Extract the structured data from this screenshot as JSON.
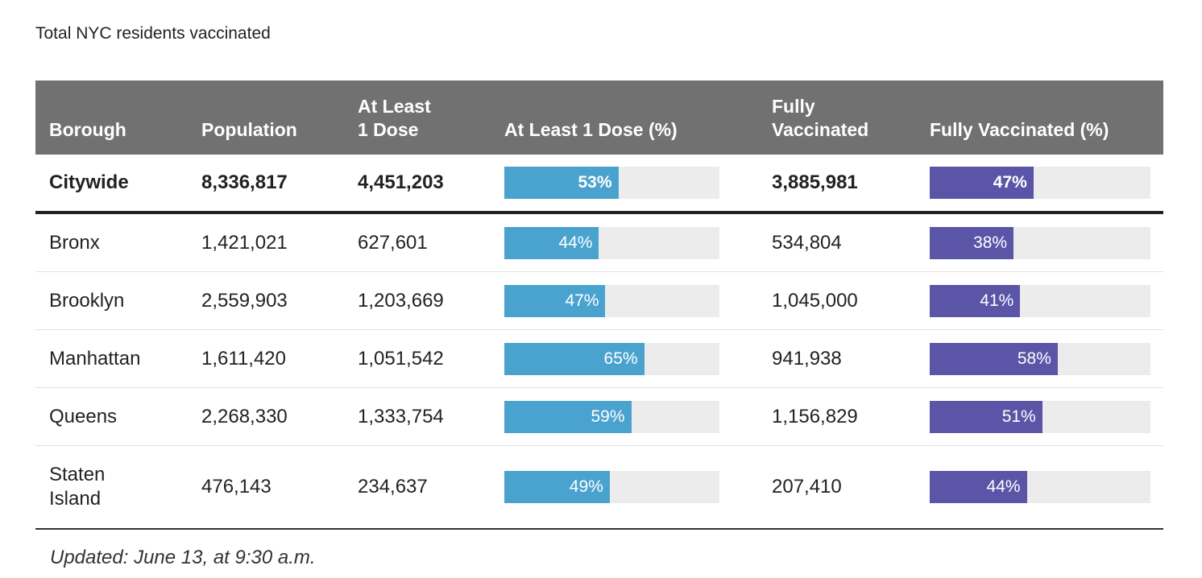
{
  "title": "Total NYC residents vaccinated",
  "colors": {
    "header_bg": "#717171",
    "dose1_bar": "#4aa3cf",
    "full_bar": "#5b55a8",
    "bar_track": "#ececec"
  },
  "columns": {
    "borough": "Borough",
    "population": "Population",
    "at_least_1_dose": [
      "At Least",
      "1 Dose"
    ],
    "at_least_1_dose_pct": "At Least 1 Dose (%)",
    "fully_vaccinated": [
      "Fully",
      "Vaccinated"
    ],
    "fully_vaccinated_pct": "Fully Vaccinated (%)"
  },
  "chart_data": {
    "type": "table",
    "columns": [
      "Borough",
      "Population",
      "At Least 1 Dose",
      "At Least 1 Dose (%)",
      "Fully Vaccinated",
      "Fully Vaccinated (%)"
    ],
    "rows": [
      {
        "borough": "Citywide",
        "population": "8,336,817",
        "dose1": "4,451,203",
        "dose1_pct": 53,
        "dose1_pct_label": "53%",
        "full": "3,885,981",
        "full_pct": 47,
        "full_pct_label": "47%"
      },
      {
        "borough": "Bronx",
        "population": "1,421,021",
        "dose1": "627,601",
        "dose1_pct": 44,
        "dose1_pct_label": "44%",
        "full": "534,804",
        "full_pct": 38,
        "full_pct_label": "38%"
      },
      {
        "borough": "Brooklyn",
        "population": "2,559,903",
        "dose1": "1,203,669",
        "dose1_pct": 47,
        "dose1_pct_label": "47%",
        "full": "1,045,000",
        "full_pct": 41,
        "full_pct_label": "41%"
      },
      {
        "borough": "Manhattan",
        "population": "1,611,420",
        "dose1": "1,051,542",
        "dose1_pct": 65,
        "dose1_pct_label": "65%",
        "full": "941,938",
        "full_pct": 58,
        "full_pct_label": "58%"
      },
      {
        "borough": "Queens",
        "population": "2,268,330",
        "dose1": "1,333,754",
        "dose1_pct": 59,
        "dose1_pct_label": "59%",
        "full": "1,156,829",
        "full_pct": 51,
        "full_pct_label": "51%"
      },
      {
        "borough": "Staten Island",
        "population": "476,143",
        "dose1": "234,637",
        "dose1_pct": 49,
        "dose1_pct_label": "49%",
        "full": "207,410",
        "full_pct": 44,
        "full_pct_label": "44%"
      }
    ]
  },
  "footnote": "Updated: June 13, at 9:30 a.m."
}
